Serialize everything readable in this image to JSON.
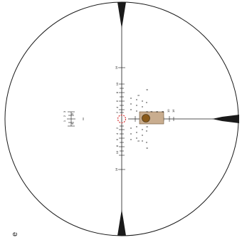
{
  "figure": {
    "panel_label": "e",
    "colors": {
      "line": "#1a1a1a",
      "background": "#ffffff",
      "aim_circle": "#d93a3a",
      "target_box": "#c9ad8f",
      "target_dot": "#8a5a1a"
    },
    "vertical_scale": {
      "upper_labels": [
        "10",
        "8",
        "6",
        "4",
        "2"
      ],
      "lower_labels": [
        "2",
        "4",
        "6",
        "8",
        "10"
      ],
      "far_upper_label": "16",
      "far_lower_label": "16"
    },
    "horizontal_scale": {
      "right_labels": [
        "2",
        "4",
        "6",
        "8",
        "10"
      ],
      "far_right_label": "16"
    },
    "left_scale": {
      "labels": [
        "3",
        "2",
        "1",
        "4",
        "5"
      ]
    },
    "holdover_dots": {
      "labels": [
        "6",
        "5",
        "5",
        "5",
        "6"
      ]
    }
  }
}
